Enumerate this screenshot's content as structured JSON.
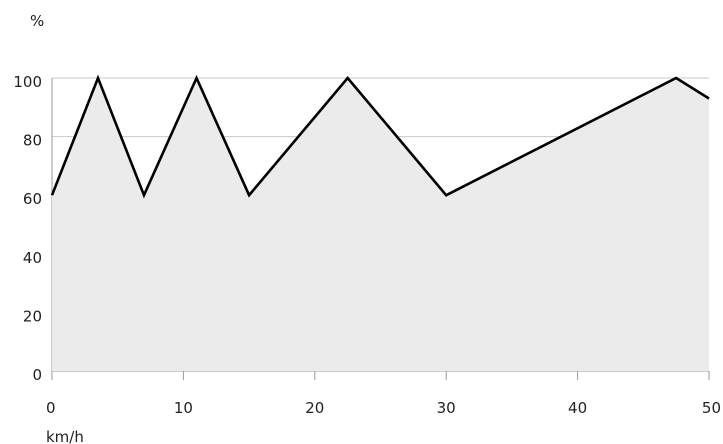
{
  "chart_data": {
    "type": "area",
    "ylabel": "%",
    "xlabel": "km/h",
    "xlim": [
      0,
      50
    ],
    "ylim": [
      0,
      100
    ],
    "x_ticks": [
      0,
      10,
      20,
      30,
      40,
      50
    ],
    "y_ticks": [
      0,
      20,
      40,
      60,
      80,
      100
    ],
    "grid": "horizontal",
    "colors": {
      "line": "#000000",
      "fill": "#ebebeb",
      "grid": "#c8c8c8"
    },
    "series": [
      {
        "x": [
          0,
          3.5,
          7,
          11,
          15,
          22.5,
          30,
          47.5,
          50
        ],
        "values": [
          60,
          100,
          60,
          100,
          60,
          100,
          60,
          100,
          93
        ]
      }
    ]
  }
}
